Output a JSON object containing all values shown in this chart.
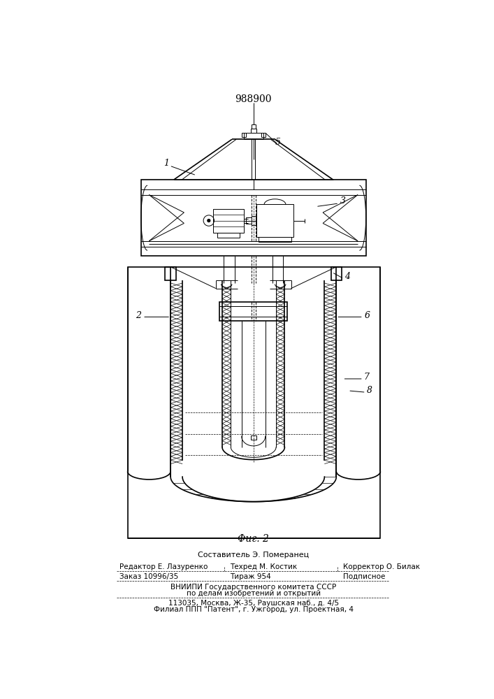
{
  "patent_number": "988900",
  "fig_label": "Φиг. 2",
  "background": "#ffffff",
  "line_color": "#000000",
  "footer_lines": [
    "Составитель Э. Померанец",
    "Редактор Е. Лазуренко",
    "Техред М. Костик",
    "Корректор О. Билак",
    "Заказ 10996/35",
    "Тираж 954",
    "Подписное",
    "ВНИИПИ Государственного комитета СССР",
    "по делам изобретений и открытий",
    "113035, Москва, Ж-35, Раушская наб., д. 4/5",
    "Филиал ППП \"Патент\", г. Ужгород, ул. Проектная, 4"
  ]
}
